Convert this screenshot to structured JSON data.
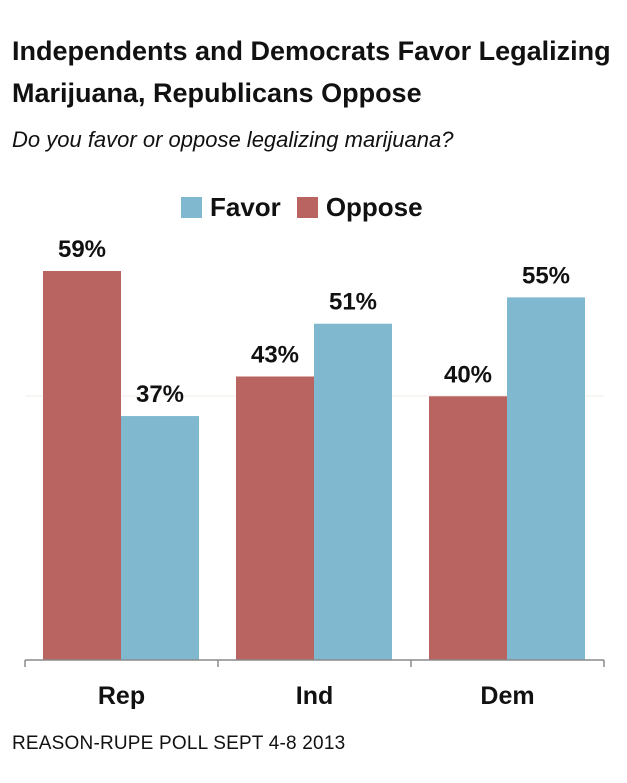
{
  "title": "Independents and Democrats Favor Legalizing Marijuana, Republicans Oppose",
  "subtitle": "Do you favor or oppose legalizing marijuana?",
  "source": "REASON-RUPE POLL SEPT 4-8 2013",
  "colors": {
    "favor": "#7fb8cf",
    "oppose": "#b96460"
  },
  "chart_data": {
    "type": "bar",
    "title": "Independents and Democrats Favor Legalizing Marijuana, Republicans Oppose",
    "subtitle": "Do you favor or oppose legalizing marijuana?",
    "categories": [
      "Rep",
      "Ind",
      "Dem"
    ],
    "series": [
      {
        "name": "Favor",
        "values": [
          37,
          51,
          55
        ],
        "labels": [
          "37%",
          "51%",
          "55%"
        ]
      },
      {
        "name": "Oppose",
        "values": [
          59,
          43,
          40
        ],
        "labels": [
          "59%",
          "43%",
          "40%"
        ]
      }
    ],
    "bar_order": [
      "Oppose",
      "Favor",
      "Oppose",
      "Favor",
      "Oppose",
      "Favor"
    ],
    "legend": "top",
    "ylim": [
      0,
      59
    ],
    "grid": false
  }
}
